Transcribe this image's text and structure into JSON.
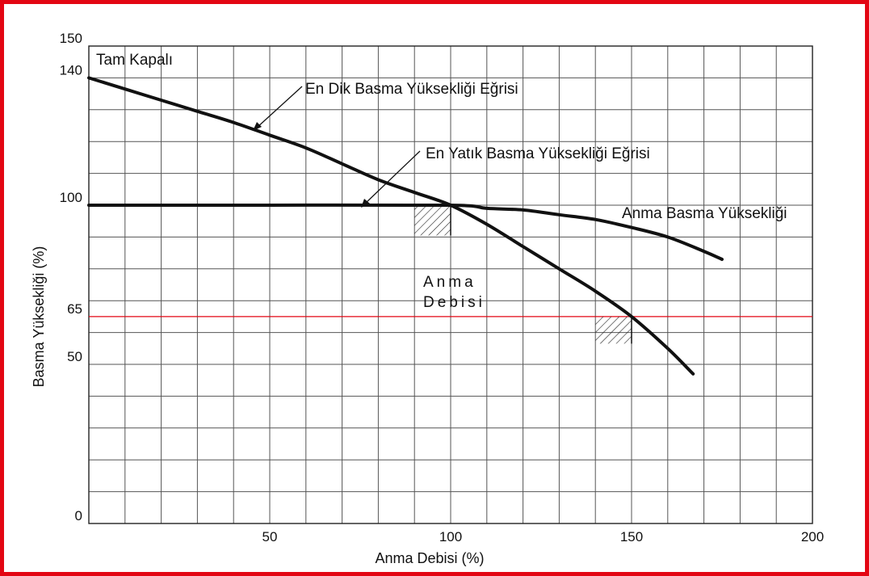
{
  "chart_data": {
    "type": "line",
    "xlabel": "Anma Debisi (%)",
    "ylabel": "Basma Yüksekliği (%)",
    "xlim": [
      0,
      200
    ],
    "ylim": [
      0,
      150
    ],
    "x_ticks": [
      50,
      100,
      150,
      200
    ],
    "y_ticks": [
      0,
      50,
      65,
      100,
      140,
      150
    ],
    "grid": true,
    "x_grid_step": 10,
    "y_grid_step": 10,
    "reference_line": {
      "y": 65,
      "color": "#e30613"
    },
    "colors": {
      "curve": "#111111",
      "grid": "#555555",
      "frame": "#e30613"
    },
    "series": [
      {
        "name": "En Dik Basma Yüksekliği Eğrisi",
        "x": [
          0,
          10,
          20,
          30,
          40,
          50,
          60,
          70,
          80,
          90,
          100,
          110,
          120,
          130,
          140,
          150,
          160,
          167
        ],
        "y": [
          140,
          136.5,
          133,
          129.5,
          126,
          122,
          118,
          113,
          108,
          104,
          100,
          94,
          87,
          80,
          73,
          65,
          55,
          47
        ]
      },
      {
        "name": "Anma Basma Yüksekliği",
        "x": [
          0,
          50,
          100,
          110,
          120,
          130,
          140,
          150,
          160,
          170,
          175
        ],
        "y": [
          100,
          100,
          100,
          99,
          98.5,
          97,
          95.5,
          93,
          90,
          85.5,
          83
        ]
      }
    ],
    "annotations": {
      "tam_kapali": "Tam Kapalı",
      "steep_curve": "En Dik Basma Yüksekliği Eğrisi",
      "flat_curve": "En Yatık Basma Yüksekliği Eğrisi",
      "rated_head": "Anma Basma Yüksekliği",
      "rated_flow_line1": "Anma",
      "rated_flow_line2": "Debisi"
    }
  }
}
